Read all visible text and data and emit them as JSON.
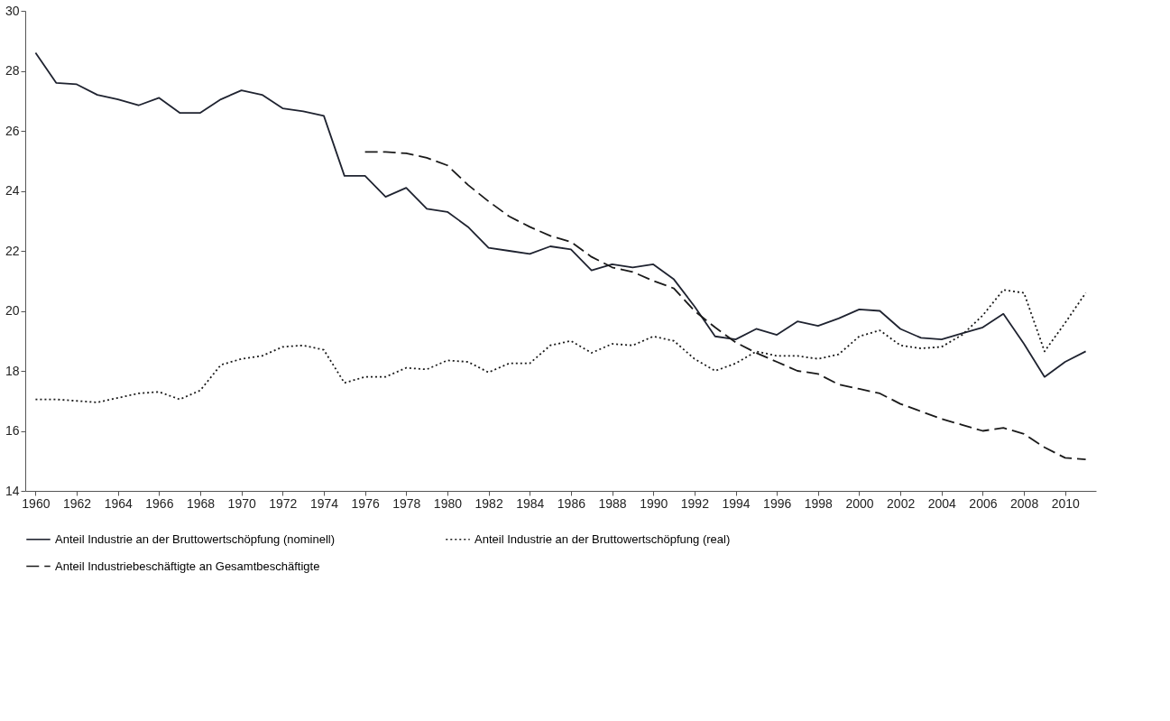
{
  "chart_data": {
    "type": "line",
    "x": [
      1960,
      1961,
      1962,
      1963,
      1964,
      1965,
      1966,
      1967,
      1968,
      1969,
      1970,
      1971,
      1972,
      1973,
      1974,
      1975,
      1976,
      1977,
      1978,
      1979,
      1980,
      1981,
      1982,
      1983,
      1984,
      1985,
      1986,
      1987,
      1988,
      1989,
      1990,
      1991,
      1992,
      1993,
      1994,
      1995,
      1996,
      1997,
      1998,
      1999,
      2000,
      2001,
      2002,
      2003,
      2004,
      2005,
      2006,
      2007,
      2008,
      2009,
      2010,
      2011
    ],
    "series": [
      {
        "name": "Anteil Industrie an der Bruttowertschöpfung (nominell)",
        "color": "#1f2330",
        "line_style": "solid",
        "values": [
          28.6,
          27.6,
          27.55,
          27.2,
          27.05,
          26.85,
          27.1,
          26.6,
          26.6,
          27.05,
          27.35,
          27.2,
          26.75,
          26.65,
          26.5,
          24.5,
          24.5,
          23.8,
          24.1,
          23.4,
          23.3,
          22.8,
          22.1,
          22.0,
          21.9,
          22.15,
          22.05,
          21.35,
          21.55,
          21.45,
          21.55,
          21.05,
          20.15,
          19.15,
          19.05,
          19.4,
          19.2,
          19.65,
          19.5,
          19.75,
          20.05,
          20.0,
          19.4,
          19.1,
          19.05,
          19.25,
          19.45,
          19.9,
          18.9,
          17.8,
          18.3,
          18.65
        ]
      },
      {
        "name": "Anteil Industrie an der Bruttowertschöpfung (real)",
        "color": "#1a1a1a",
        "line_style": "dotted",
        "values": [
          17.05,
          17.05,
          17.0,
          16.95,
          17.1,
          17.25,
          17.3,
          17.05,
          17.35,
          18.2,
          18.4,
          18.5,
          18.8,
          18.85,
          18.7,
          17.6,
          17.8,
          17.8,
          18.1,
          18.05,
          18.35,
          18.3,
          17.95,
          18.25,
          18.25,
          18.85,
          19.0,
          18.6,
          18.9,
          18.85,
          19.15,
          19.0,
          18.4,
          18.0,
          18.25,
          18.65,
          18.5,
          18.5,
          18.4,
          18.55,
          19.15,
          19.35,
          18.85,
          18.75,
          18.8,
          19.2,
          19.85,
          20.7,
          20.6,
          18.65,
          19.6,
          20.6
        ]
      },
      {
        "name": "Anteil Industriebeschäftigte an Gesamtbeschäftigte",
        "color": "#1a1a1a",
        "line_style": "dashed",
        "x": [
          1976,
          1977,
          1978,
          1979,
          1980,
          1981,
          1982,
          1983,
          1984,
          1985,
          1986,
          1987,
          1988,
          1989,
          1990,
          1991,
          1992,
          1993,
          1994,
          1995,
          1996,
          1997,
          1998,
          1999,
          2000,
          2001,
          2002,
          2003,
          2004,
          2005,
          2006,
          2007,
          2008,
          2009,
          2010,
          2011
        ],
        "values": [
          25.3,
          25.3,
          25.25,
          25.1,
          24.85,
          24.2,
          23.65,
          23.15,
          22.8,
          22.5,
          22.3,
          21.8,
          21.45,
          21.3,
          21.0,
          20.75,
          20.0,
          19.45,
          18.95,
          18.6,
          18.3,
          18.0,
          17.9,
          17.55,
          17.4,
          17.25,
          16.9,
          16.65,
          16.4,
          16.2,
          16.0,
          16.1,
          15.9,
          15.45,
          15.1,
          15.05
        ]
      }
    ],
    "xlim": [
      1959.5,
      2011.5
    ],
    "xticks": [
      1960,
      1962,
      1964,
      1966,
      1968,
      1970,
      1972,
      1974,
      1976,
      1978,
      1980,
      1982,
      1984,
      1986,
      1988,
      1990,
      1992,
      1994,
      1996,
      1998,
      2000,
      2002,
      2004,
      2006,
      2008,
      2010
    ],
    "ylim": [
      14,
      30
    ],
    "yticks": [
      14,
      16,
      18,
      20,
      22,
      24,
      26,
      28,
      30
    ],
    "grid": false,
    "legend": "bottom",
    "marker": "none"
  }
}
